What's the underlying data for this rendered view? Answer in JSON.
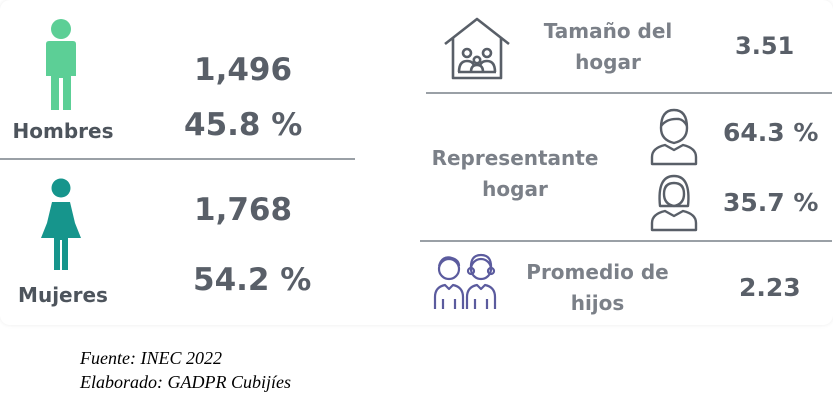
{
  "men": {
    "label": "Hombres",
    "count": "1,496",
    "percent": "45.8 %",
    "icon": "man-icon",
    "color": "#5ccf96"
  },
  "women": {
    "label": "Mujeres",
    "count": "1,768",
    "percent": "54.2 %",
    "icon": "woman-icon",
    "color": "#16958c"
  },
  "household_size": {
    "label_line1": "Tamaño del",
    "label_line2": "hogar",
    "value": "3.51",
    "icon": "house-family-icon"
  },
  "household_head": {
    "label_line1": "Representante",
    "label_line2": "hogar",
    "male_percent": "64.3 %",
    "female_percent": "35.7 %",
    "male_icon": "male-avatar-icon",
    "female_icon": "female-avatar-icon"
  },
  "children_avg": {
    "label_line1": "Promedio de",
    "label_line2": "hijos",
    "value": "2.23",
    "icon": "children-icon",
    "icon_color": "#5b5b9e"
  },
  "footer": {
    "source": "Fuente: INEC 2022",
    "author": "Elaborado: GADPR Cubijíes"
  }
}
